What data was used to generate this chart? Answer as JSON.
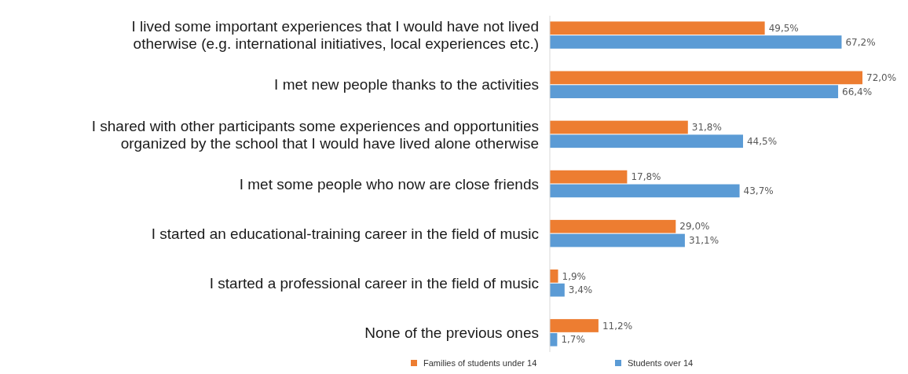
{
  "chart_data": {
    "type": "bar",
    "orientation": "horizontal",
    "legend": "bottom",
    "categories": [
      "I lived some important experiences that I would have not lived otherwise (e.g. international initiatives, local experiences etc.)",
      "I met new people thanks to the activities",
      "I shared with other participants some experiences and opportunities organized by the school that I would have lived alone otherwise",
      "I met some people who now are close friends",
      "I started an educational-training career in the field of music",
      "I started a professional career in the field of music",
      "None of the previous ones"
    ],
    "series": [
      {
        "name": "Families of students under 14",
        "color": "#ed7d31",
        "values": [
          49.5,
          72.0,
          31.8,
          17.8,
          29.0,
          1.9,
          11.2
        ],
        "value_labels": [
          "49,5%",
          "72,0%",
          "31,8%",
          "17,8%",
          "29,0%",
          "1,9%",
          "11,2%"
        ]
      },
      {
        "name": "Students over 14",
        "color": "#5b9bd5",
        "values": [
          67.2,
          66.4,
          44.5,
          43.7,
          31.1,
          3.4,
          1.7
        ],
        "value_labels": [
          "67,2%",
          "66,4%",
          "44,5%",
          "43,7%",
          "31,1%",
          "3,4%",
          "1,7%"
        ]
      }
    ]
  }
}
